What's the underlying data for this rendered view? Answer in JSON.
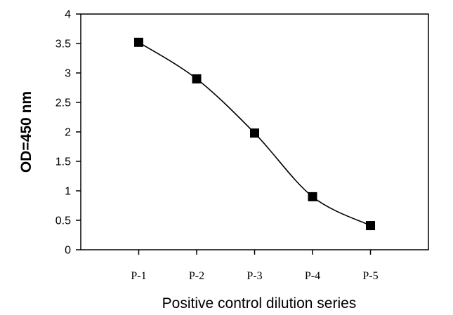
{
  "chart_data": {
    "type": "line",
    "title": "",
    "xlabel": "Positive control dilution series",
    "ylabel": "OD=450 nm",
    "categories": [
      "P-1",
      "P-2",
      "P-3",
      "P-4",
      "P-5"
    ],
    "series": [
      {
        "values": [
          3.52,
          2.9,
          1.98,
          0.9,
          0.41
        ],
        "marker": "square",
        "color": "#000000"
      }
    ],
    "ylim": [
      0,
      4
    ],
    "yticks": [
      "0",
      "0.5",
      "1",
      "1.5",
      "2",
      "2.5",
      "3",
      "3.5",
      "4"
    ],
    "grid": false,
    "legend": "none"
  }
}
